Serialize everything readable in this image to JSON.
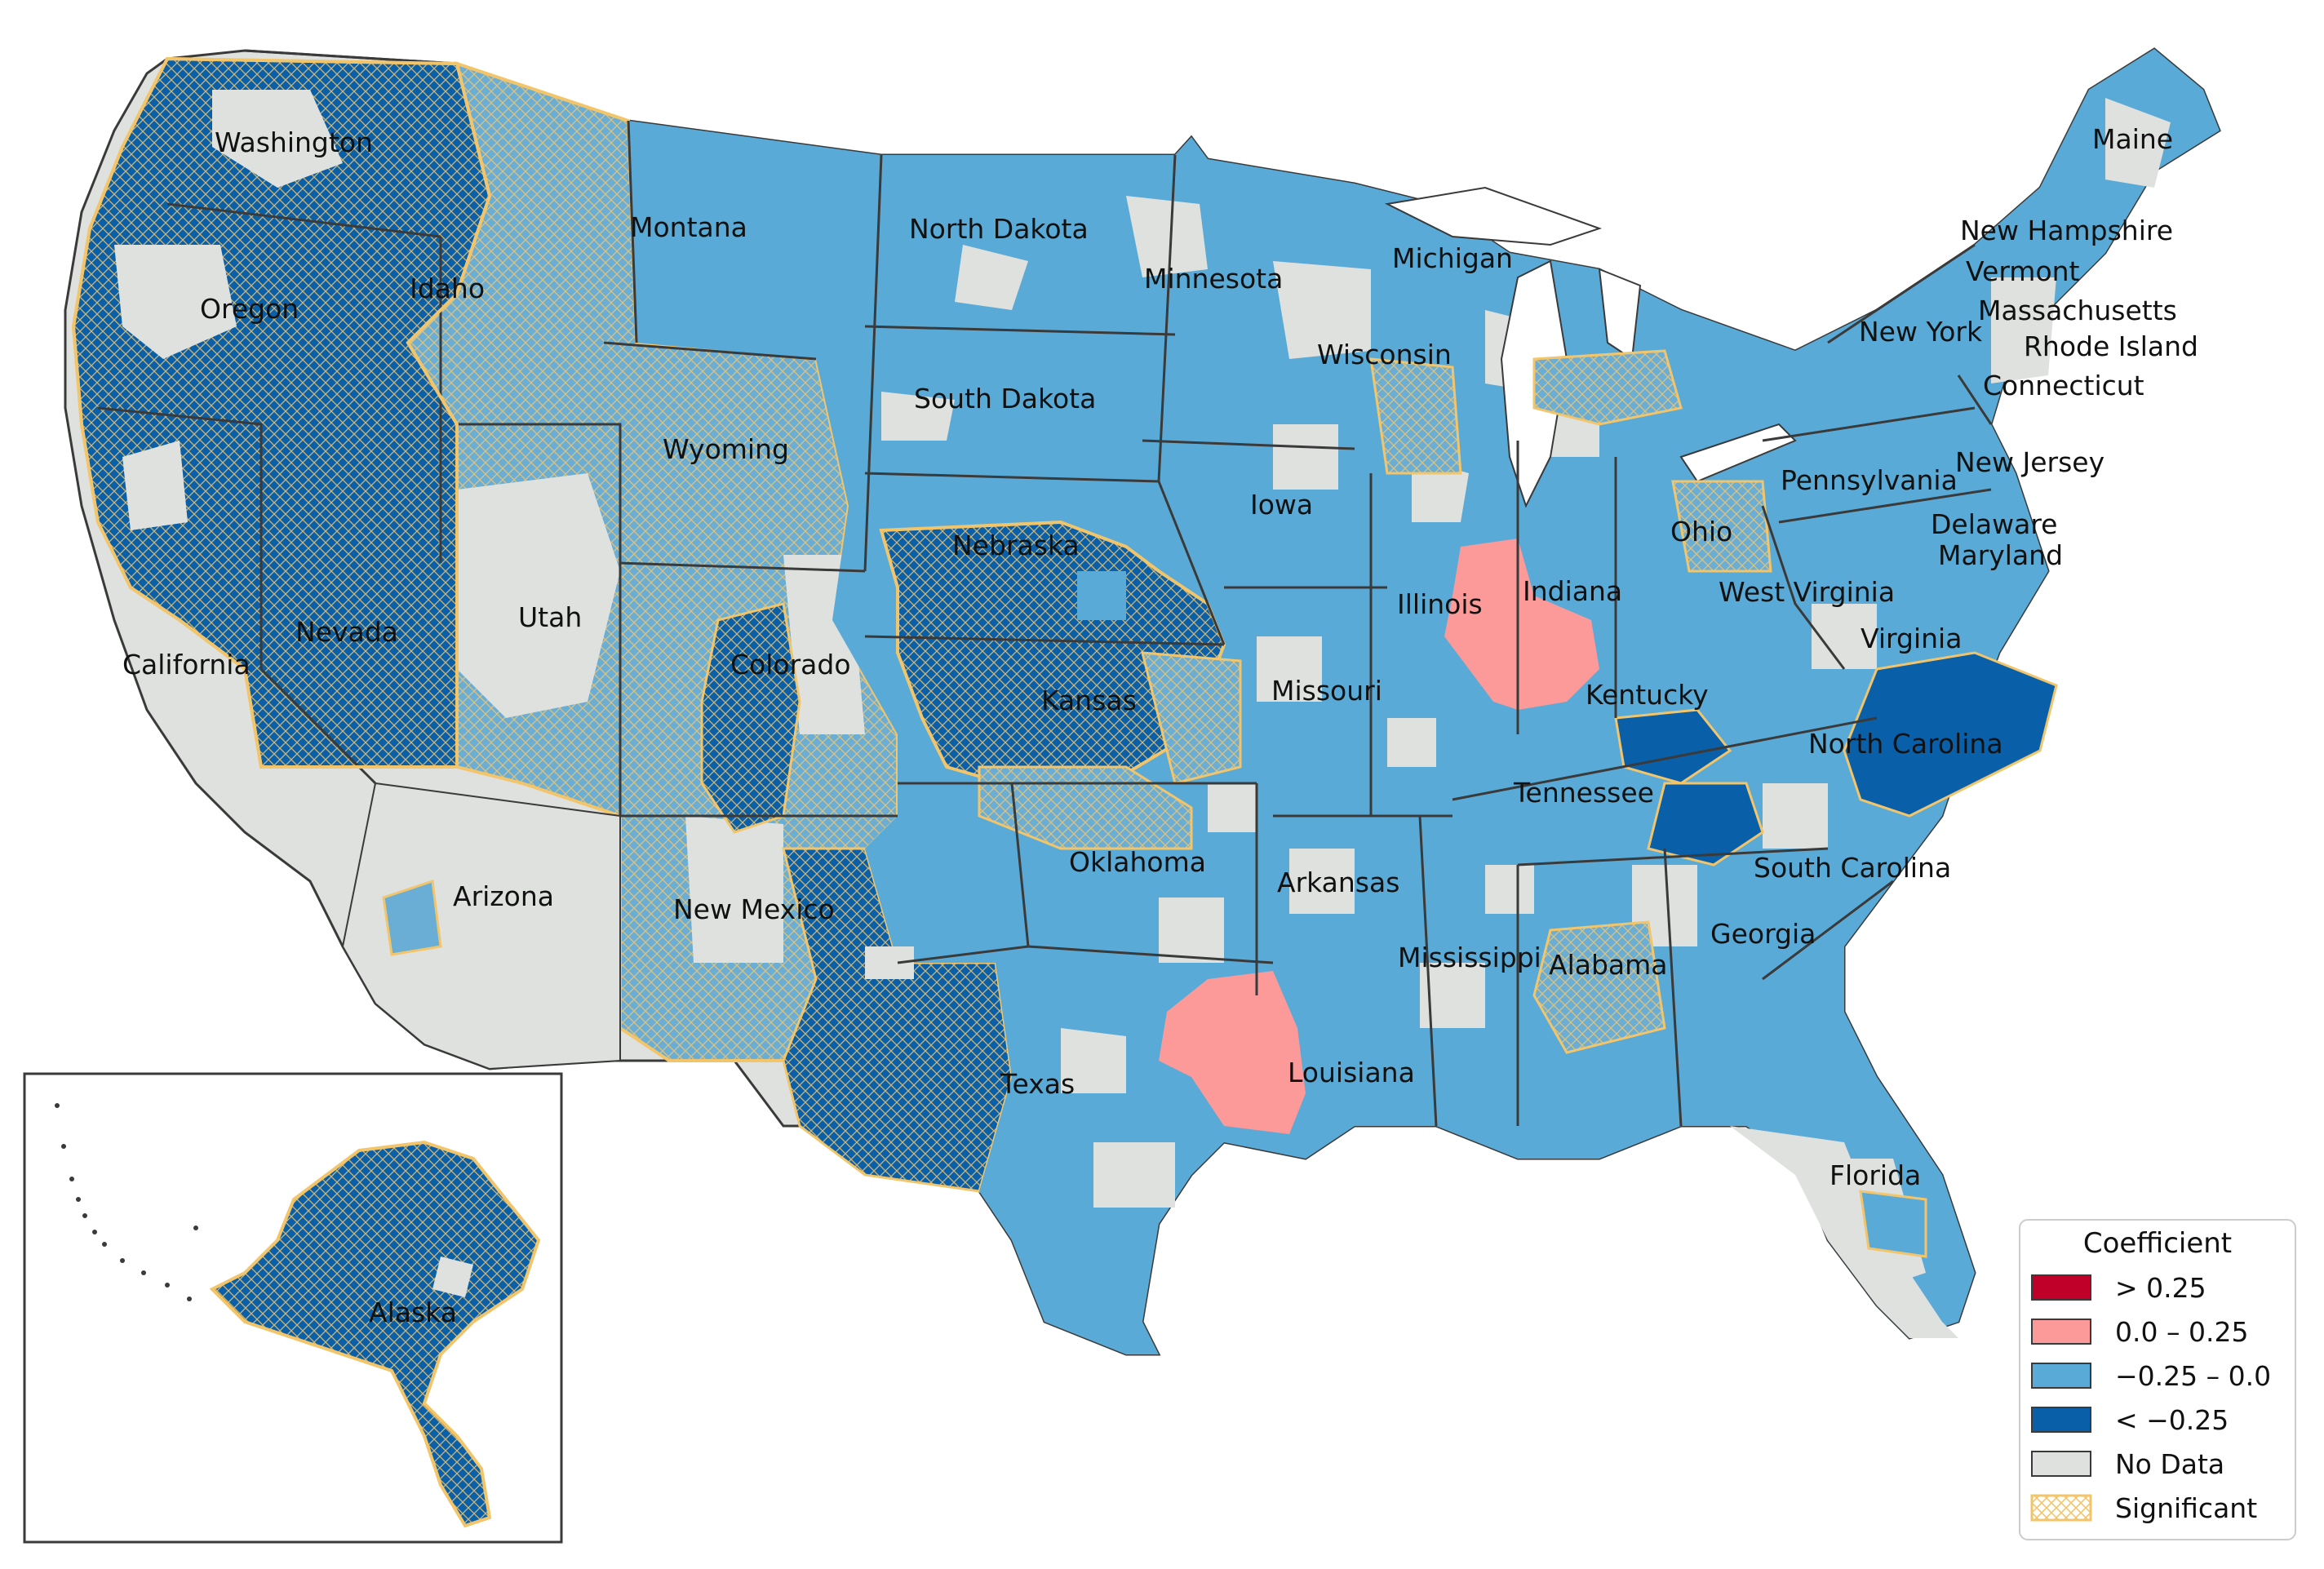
{
  "map": {
    "states": [
      {
        "label": "Washington",
        "fill": "#0a60a8",
        "hatched": true
      },
      {
        "label": "Oregon",
        "fill": "#0a60a8",
        "hatched": true
      },
      {
        "label": "California",
        "fill": "#dfe1df",
        "hatched": false
      },
      {
        "label": "Nevada",
        "fill": "#0a60a8",
        "hatched": true
      },
      {
        "label": "Idaho",
        "fill": "#6aaed6",
        "hatched": true
      },
      {
        "label": "Montana",
        "fill": "#5aaad7",
        "hatched": false
      },
      {
        "label": "Wyoming",
        "fill": "#6aaed6",
        "hatched": true
      },
      {
        "label": "Utah",
        "fill": "#6aaed6",
        "hatched": true
      },
      {
        "label": "Arizona",
        "fill": "#dfe1df",
        "hatched": false
      },
      {
        "label": "Colorado",
        "fill": "#6aaed6",
        "hatched": true
      },
      {
        "label": "New Mexico",
        "fill": "#6aaed6",
        "hatched": true
      },
      {
        "label": "North Dakota",
        "fill": "#5aaad7",
        "hatched": false
      },
      {
        "label": "South Dakota",
        "fill": "#5aaad7",
        "hatched": false
      },
      {
        "label": "Nebraska",
        "fill": "#0a60a8",
        "hatched": true
      },
      {
        "label": "Kansas",
        "fill": "#0a60a8",
        "hatched": true
      },
      {
        "label": "Oklahoma",
        "fill": "#5aaad7",
        "hatched": false
      },
      {
        "label": "Texas",
        "fill": "#5aaad7",
        "hatched": false
      },
      {
        "label": "Minnesota",
        "fill": "#5aaad7",
        "hatched": false
      },
      {
        "label": "Iowa",
        "fill": "#5aaad7",
        "hatched": false
      },
      {
        "label": "Missouri",
        "fill": "#5aaad7",
        "hatched": false
      },
      {
        "label": "Arkansas",
        "fill": "#5aaad7",
        "hatched": false
      },
      {
        "label": "Louisiana",
        "fill": "#5aaad7",
        "hatched": false
      },
      {
        "label": "Wisconsin",
        "fill": "#5aaad7",
        "hatched": false
      },
      {
        "label": "Illinois",
        "fill": "#5aaad7",
        "hatched": false
      },
      {
        "label": "Michigan",
        "fill": "#5aaad7",
        "hatched": false
      },
      {
        "label": "Indiana",
        "fill": "#5aaad7",
        "hatched": false
      },
      {
        "label": "Ohio",
        "fill": "#5aaad7",
        "hatched": false
      },
      {
        "label": "Kentucky",
        "fill": "#5aaad7",
        "hatched": false
      },
      {
        "label": "Tennessee",
        "fill": "#5aaad7",
        "hatched": false
      },
      {
        "label": "Mississippi",
        "fill": "#5aaad7",
        "hatched": false
      },
      {
        "label": "Alabama",
        "fill": "#5aaad7",
        "hatched": false
      },
      {
        "label": "Georgia",
        "fill": "#5aaad7",
        "hatched": false
      },
      {
        "label": "Florida",
        "fill": "#dfe1df",
        "hatched": false
      },
      {
        "label": "South Carolina",
        "fill": "#5aaad7",
        "hatched": false
      },
      {
        "label": "North Carolina",
        "fill": "#0a60a8",
        "hatched": false
      },
      {
        "label": "Virginia",
        "fill": "#5aaad7",
        "hatched": false
      },
      {
        "label": "West Virginia",
        "fill": "#5aaad7",
        "hatched": false
      },
      {
        "label": "Pennsylvania",
        "fill": "#5aaad7",
        "hatched": false
      },
      {
        "label": "New York",
        "fill": "#5aaad7",
        "hatched": false
      },
      {
        "label": "Maryland",
        "fill": "#5aaad7",
        "hatched": false
      },
      {
        "label": "Delaware",
        "fill": "#dfe1df",
        "hatched": false
      },
      {
        "label": "New Jersey",
        "fill": "#dfe1df",
        "hatched": false
      },
      {
        "label": "Connecticut",
        "fill": "#dfe1df",
        "hatched": false
      },
      {
        "label": "Rhode Island",
        "fill": "#dfe1df",
        "hatched": false
      },
      {
        "label": "Massachusetts",
        "fill": "#dfe1df",
        "hatched": false
      },
      {
        "label": "Vermont",
        "fill": "#5aaad7",
        "hatched": false
      },
      {
        "label": "New Hampshire",
        "fill": "#5aaad7",
        "hatched": false
      },
      {
        "label": "Maine",
        "fill": "#5aaad7",
        "hatched": false
      },
      {
        "label": "Alaska",
        "fill": "#0a60a8",
        "hatched": true
      }
    ],
    "highlight_regions": [
      {
        "name": "Illinois-Indiana cluster",
        "category": "0.0 – 0.25"
      },
      {
        "name": "East Texas cluster",
        "category": "0.0 – 0.25"
      }
    ]
  },
  "legend": {
    "title": "Coefficient",
    "items": [
      {
        "label": "> 0.25",
        "color": "#c1002a",
        "pattern": "solid"
      },
      {
        "label": "0.0 – 0.25",
        "color": "#fb9a99",
        "pattern": "solid"
      },
      {
        "label": "−0.25 – 0.0",
        "color": "#5aaad7",
        "pattern": "solid"
      },
      {
        "label": "< −0.25",
        "color": "#0a60a8",
        "pattern": "solid"
      },
      {
        "label": "No Data",
        "color": "#dfe1df",
        "pattern": "solid"
      },
      {
        "label": "Significant",
        "color": "#f3c56b",
        "pattern": "hatch"
      }
    ]
  },
  "colors": {
    "state_border": "#3a3a3a",
    "significant_outline": "#f3c56b",
    "background": "#ffffff"
  }
}
